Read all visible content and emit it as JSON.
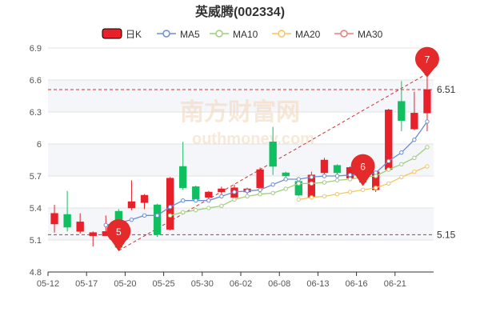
{
  "chart_data": {
    "type": "candlestick",
    "title": "英威腾(002334)",
    "legend": [
      "日K",
      "MA5",
      "MA10",
      "MA20",
      "MA30"
    ],
    "colors": {
      "up": "#e8202a",
      "down": "#10c060",
      "ma5": "#6b8ed6",
      "ma10": "#9ed07a",
      "ma20": "#f8c55a",
      "ma30": "#ef7b7b",
      "ref_line": "#cc3333"
    },
    "ylim": [
      4.8,
      6.9
    ],
    "y_ticks": [
      "6.9",
      "6.6",
      "6.3",
      "6",
      "5.7",
      "5.4",
      "5.1",
      "4.8"
    ],
    "x_tick_labels": [
      "05-12",
      "05-17",
      "05-20",
      "05-25",
      "05-30",
      "06-02",
      "06-08",
      "06-13",
      "06-16",
      "06-21"
    ],
    "candles": [
      {
        "o": 5.25,
        "c": 5.35,
        "h": 5.43,
        "l": 5.17
      },
      {
        "o": 5.34,
        "c": 5.22,
        "h": 5.56,
        "l": 5.18
      },
      {
        "o": 5.18,
        "c": 5.27,
        "h": 5.35,
        "l": 5.16
      },
      {
        "o": 5.14,
        "c": 5.17,
        "h": 5.18,
        "l": 5.04
      },
      {
        "o": 5.14,
        "c": 5.18,
        "h": 5.33,
        "l": 5.14
      },
      {
        "o": 5.37,
        "c": 5.03,
        "h": 5.39,
        "l": 5.01
      },
      {
        "o": 5.4,
        "c": 5.46,
        "h": 5.66,
        "l": 5.38
      },
      {
        "o": 5.45,
        "c": 5.52,
        "h": 5.53,
        "l": 5.39
      },
      {
        "o": 5.43,
        "c": 5.15,
        "h": 5.44,
        "l": 5.13
      },
      {
        "o": 5.2,
        "c": 5.68,
        "h": 5.69,
        "l": 5.19
      },
      {
        "o": 5.79,
        "c": 5.59,
        "h": 6.02,
        "l": 5.57
      },
      {
        "o": 5.6,
        "c": 5.48,
        "h": 5.61,
        "l": 5.46
      },
      {
        "o": 5.5,
        "c": 5.55,
        "h": 5.56,
        "l": 5.48
      },
      {
        "o": 5.55,
        "c": 5.58,
        "h": 5.6,
        "l": 5.52
      },
      {
        "o": 5.5,
        "c": 5.59,
        "h": 5.62,
        "l": 5.49
      },
      {
        "o": 5.55,
        "c": 5.58,
        "h": 5.59,
        "l": 5.53
      },
      {
        "o": 5.59,
        "c": 5.76,
        "h": 5.78,
        "l": 5.58
      },
      {
        "o": 6.02,
        "c": 5.79,
        "h": 6.16,
        "l": 5.71
      },
      {
        "o": 5.73,
        "c": 5.7,
        "h": 5.74,
        "l": 5.68
      },
      {
        "o": 5.65,
        "c": 5.52,
        "h": 5.68,
        "l": 5.51
      },
      {
        "o": 5.5,
        "c": 5.71,
        "h": 5.74,
        "l": 5.49
      },
      {
        "o": 5.73,
        "c": 5.85,
        "h": 5.87,
        "l": 5.7
      },
      {
        "o": 5.8,
        "c": 5.73,
        "h": 5.81,
        "l": 5.71
      },
      {
        "o": 5.68,
        "c": 5.78,
        "h": 5.79,
        "l": 5.66
      },
      {
        "o": 5.66,
        "c": 5.64,
        "h": 5.67,
        "l": 5.62
      },
      {
        "o": 5.57,
        "c": 5.74,
        "h": 5.75,
        "l": 5.55
      },
      {
        "o": 5.76,
        "c": 6.32,
        "h": 6.33,
        "l": 5.75
      },
      {
        "o": 6.4,
        "c": 6.22,
        "h": 6.59,
        "l": 6.12
      },
      {
        "o": 6.14,
        "c": 6.29,
        "h": 6.49,
        "l": 6.13
      },
      {
        "o": 6.29,
        "c": 6.51,
        "h": 6.64,
        "l": 6.12
      }
    ],
    "ma5": [
      null,
      null,
      null,
      null,
      5.24,
      5.26,
      5.29,
      5.33,
      5.33,
      5.41,
      5.47,
      5.47,
      5.47,
      5.51,
      5.55,
      5.56,
      5.57,
      5.62,
      5.67,
      5.67,
      5.69,
      5.7,
      5.7,
      5.71,
      5.71,
      5.73,
      5.84,
      5.92,
      6.04,
      6.21
    ],
    "ma10": [
      null,
      null,
      null,
      null,
      null,
      null,
      null,
      null,
      null,
      5.33,
      5.36,
      5.38,
      5.4,
      5.42,
      5.48,
      5.51,
      5.53,
      5.54,
      5.58,
      5.63,
      5.63,
      5.64,
      5.66,
      5.67,
      5.69,
      5.7,
      5.76,
      5.81,
      5.87,
      5.97
    ],
    "ma20": [
      null,
      null,
      null,
      null,
      null,
      null,
      null,
      null,
      null,
      null,
      null,
      null,
      null,
      null,
      null,
      null,
      null,
      null,
      null,
      5.48,
      5.5,
      5.51,
      5.53,
      5.55,
      5.57,
      5.59,
      5.63,
      5.69,
      5.74,
      5.79
    ],
    "ma30": [],
    "ref_lines": [
      {
        "value": 6.51,
        "label": "6.51"
      },
      {
        "value": 5.15,
        "label": "5.15"
      }
    ],
    "trend_line": {
      "from_index": 5,
      "from_value": 5.0,
      "to_index": 29,
      "to_value": 6.66
    },
    "markers": [
      {
        "index": 5,
        "label": "5"
      },
      {
        "index": 24,
        "label": "6"
      },
      {
        "index": 29,
        "label": "7"
      }
    ],
    "watermark": {
      "cn": "南方财富网",
      "en": "outhmoney.com"
    }
  }
}
